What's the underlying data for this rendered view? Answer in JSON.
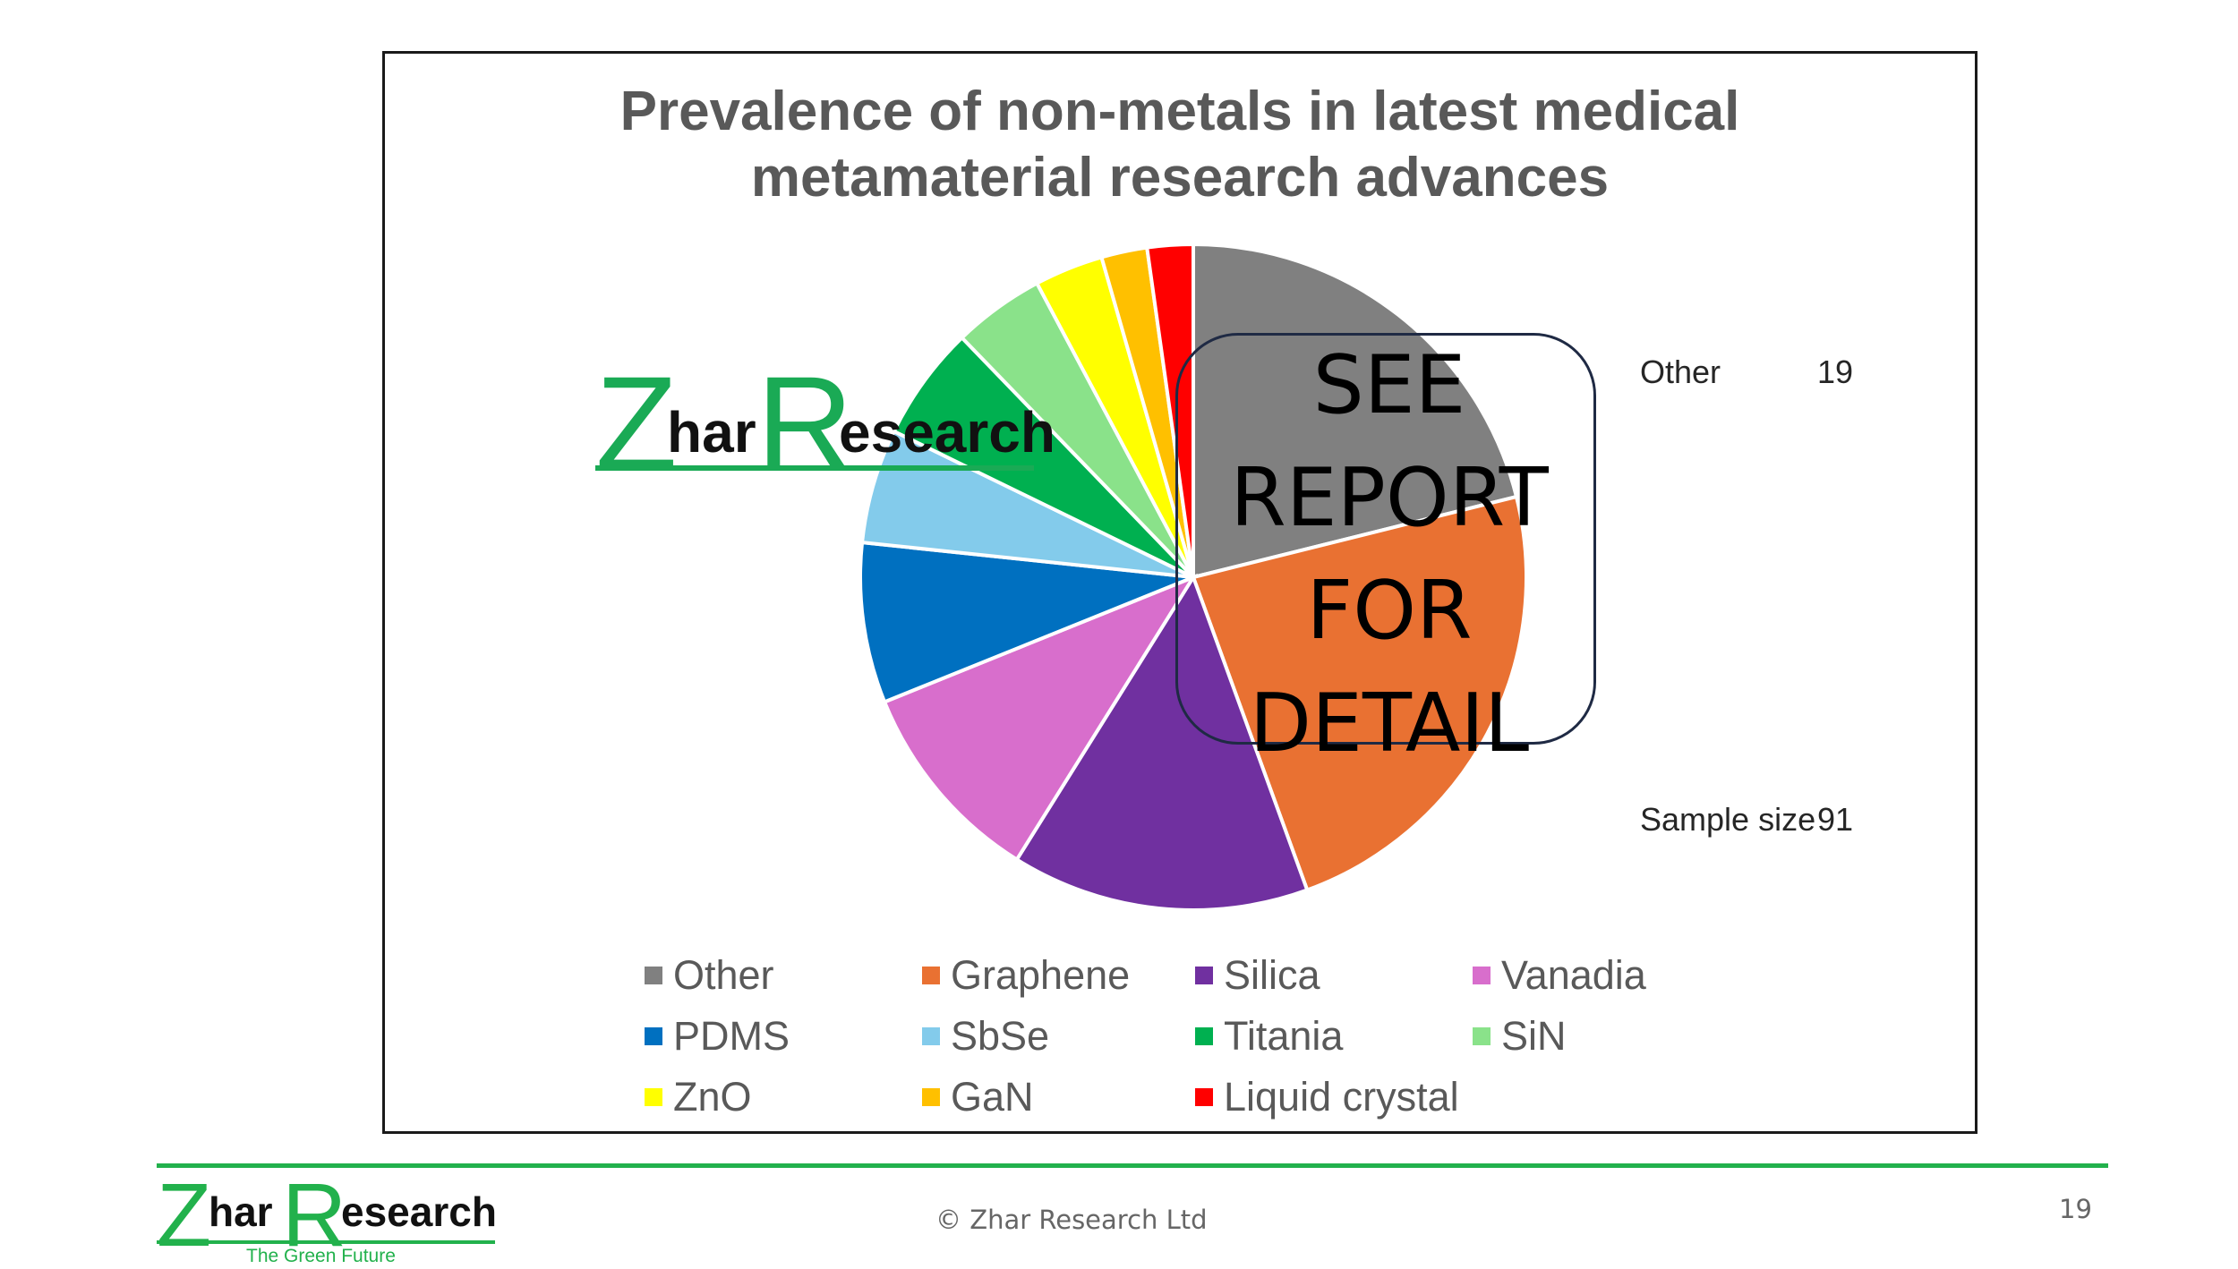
{
  "chart_data": {
    "type": "pie",
    "title": [
      "Prevalence of non-metals in latest medical",
      "metamaterial research advances"
    ],
    "categories": [
      "Other",
      "Graphene",
      "Silica",
      "Vanadia",
      "PDMS",
      "SbSe",
      "Titania",
      "SiN",
      "ZnO",
      "GaN",
      "Liquid crystal"
    ],
    "values": [
      19,
      21,
      13,
      9,
      7,
      5,
      5,
      4,
      3,
      2,
      2
    ],
    "colors": [
      "#808080",
      "#e97132",
      "#7030a0",
      "#d86ecc",
      "#0070c0",
      "#83cbeb",
      "#00b050",
      "#8ae28a",
      "#ffff00",
      "#ffc000",
      "#ff0000"
    ],
    "legend_placement": "bottom",
    "grid": false
  },
  "annotations": {
    "other_label": "Other",
    "other_value": "19",
    "sample_size_label": "Sample size",
    "sample_size_value": "91",
    "see_report": [
      "SEE",
      "REPORT",
      "FOR",
      "DETAIL"
    ]
  },
  "brand": {
    "logo_z": "Z",
    "logo_har": "har",
    "logo_r": "R",
    "logo_esearch": "esearch",
    "tagline": "The Green Future",
    "logo_color": "#22b14c",
    "watermark_color": "#1aaa55"
  },
  "footer": {
    "copyright": "© Zhar Research Ltd",
    "page_number": "19"
  }
}
